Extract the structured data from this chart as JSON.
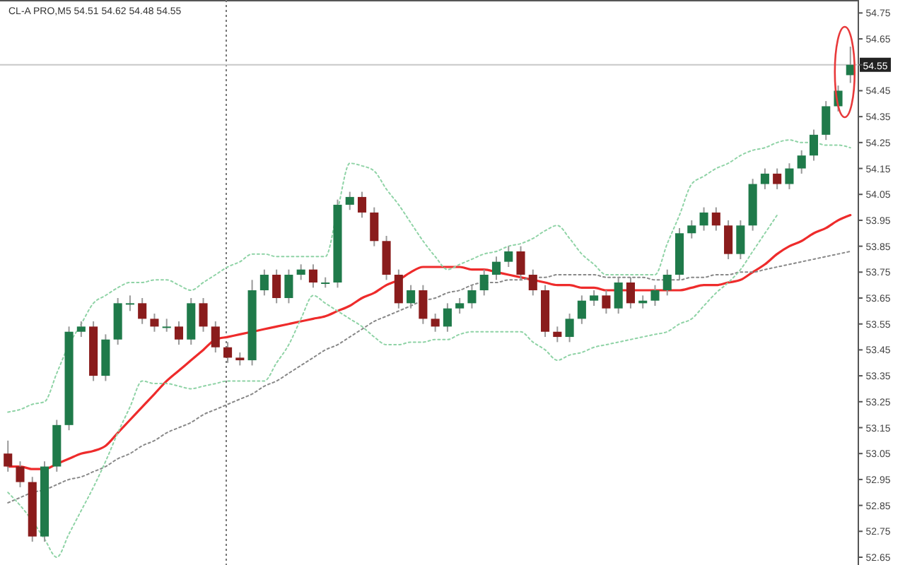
{
  "chart_data": {
    "type": "candlestick",
    "title": "CL-A PRO,M5 54.51 54.62 54.48 54.55",
    "categories": [
      null,
      null,
      null,
      null,
      null,
      null,
      null,
      null,
      null,
      null,
      null,
      null,
      null,
      null,
      null,
      null,
      null,
      null,
      null,
      null,
      null,
      null,
      null,
      null,
      null,
      null,
      null,
      null,
      null,
      null,
      null,
      null,
      null,
      null,
      null,
      null,
      null,
      null,
      null,
      null,
      null,
      null,
      null,
      null,
      null,
      null,
      null,
      null,
      null,
      null,
      null,
      null,
      null,
      null,
      null,
      null,
      null,
      null,
      null,
      null,
      null,
      null,
      null,
      null,
      null,
      null,
      null,
      null,
      null,
      null
    ],
    "ohlc": [
      [
        53.05,
        53.1,
        52.98,
        53.0
      ],
      [
        53.0,
        53.02,
        52.92,
        52.94
      ],
      [
        52.94,
        52.96,
        52.71,
        52.73
      ],
      [
        52.73,
        53.02,
        52.71,
        53.0
      ],
      [
        53.0,
        53.18,
        52.98,
        53.16
      ],
      [
        53.16,
        53.54,
        53.14,
        53.52
      ],
      [
        53.52,
        53.56,
        53.5,
        53.54
      ],
      [
        53.54,
        53.56,
        53.33,
        53.35
      ],
      [
        53.35,
        53.51,
        53.33,
        53.49
      ],
      [
        53.49,
        53.65,
        53.47,
        53.63
      ],
      [
        53.63,
        53.66,
        53.6,
        53.63
      ],
      [
        53.63,
        53.65,
        53.55,
        53.57
      ],
      [
        53.57,
        53.59,
        53.52,
        53.54
      ],
      [
        53.54,
        53.57,
        53.52,
        53.54
      ],
      [
        53.54,
        53.56,
        53.47,
        53.49
      ],
      [
        53.49,
        53.65,
        53.47,
        53.63
      ],
      [
        53.63,
        53.65,
        53.52,
        53.54
      ],
      [
        53.54,
        53.56,
        53.44,
        53.46
      ],
      [
        53.46,
        53.48,
        53.4,
        53.42
      ],
      [
        53.42,
        53.44,
        53.39,
        53.41
      ],
      [
        53.41,
        53.72,
        53.39,
        53.68
      ],
      [
        53.68,
        53.76,
        53.66,
        53.74
      ],
      [
        53.74,
        53.76,
        53.63,
        53.65
      ],
      [
        53.65,
        53.76,
        53.63,
        53.74
      ],
      [
        53.74,
        53.78,
        53.72,
        53.76
      ],
      [
        53.76,
        53.78,
        53.69,
        53.71
      ],
      [
        53.71,
        53.73,
        53.69,
        53.71
      ],
      [
        53.71,
        54.03,
        53.69,
        54.01
      ],
      [
        54.01,
        54.06,
        53.99,
        54.04
      ],
      [
        54.04,
        54.06,
        53.96,
        53.98
      ],
      [
        53.98,
        54.0,
        53.85,
        53.87
      ],
      [
        53.87,
        53.89,
        53.72,
        53.74
      ],
      [
        53.74,
        53.76,
        53.61,
        53.63
      ],
      [
        53.63,
        53.7,
        53.61,
        53.68
      ],
      [
        53.68,
        53.7,
        53.55,
        53.57
      ],
      [
        53.57,
        53.59,
        53.52,
        53.54
      ],
      [
        53.54,
        53.63,
        53.52,
        53.61
      ],
      [
        53.61,
        53.65,
        53.59,
        53.63
      ],
      [
        53.63,
        53.7,
        53.61,
        53.68
      ],
      [
        53.68,
        53.76,
        53.66,
        53.74
      ],
      [
        53.74,
        53.81,
        53.72,
        53.79
      ],
      [
        53.79,
        53.85,
        53.77,
        53.83
      ],
      [
        53.83,
        53.85,
        53.72,
        53.74
      ],
      [
        53.74,
        53.76,
        53.66,
        53.68
      ],
      [
        53.68,
        53.7,
        53.5,
        53.52
      ],
      [
        53.52,
        53.54,
        53.48,
        53.5
      ],
      [
        53.5,
        53.59,
        53.48,
        53.57
      ],
      [
        53.57,
        53.66,
        53.55,
        53.64
      ],
      [
        53.64,
        53.68,
        53.62,
        53.66
      ],
      [
        53.66,
        53.68,
        53.59,
        53.61
      ],
      [
        53.61,
        53.73,
        53.59,
        53.71
      ],
      [
        53.71,
        53.73,
        53.61,
        53.63
      ],
      [
        53.63,
        53.66,
        53.61,
        53.64
      ],
      [
        53.64,
        53.7,
        53.62,
        53.68
      ],
      [
        53.68,
        53.76,
        53.66,
        53.74
      ],
      [
        53.74,
        53.92,
        53.72,
        53.9
      ],
      [
        53.9,
        53.95,
        53.88,
        53.93
      ],
      [
        53.93,
        54.0,
        53.91,
        53.98
      ],
      [
        53.98,
        54.0,
        53.91,
        53.93
      ],
      [
        53.93,
        53.95,
        53.8,
        53.82
      ],
      [
        53.82,
        53.95,
        53.8,
        53.93
      ],
      [
        53.93,
        54.11,
        53.91,
        54.09
      ],
      [
        54.09,
        54.15,
        54.07,
        54.13
      ],
      [
        54.13,
        54.15,
        54.07,
        54.09
      ],
      [
        54.09,
        54.17,
        54.07,
        54.15
      ],
      [
        54.15,
        54.22,
        54.13,
        54.2
      ],
      [
        54.2,
        54.3,
        54.18,
        54.28
      ],
      [
        54.28,
        54.41,
        54.26,
        54.39
      ],
      [
        54.39,
        54.47,
        54.37,
        54.45
      ],
      [
        54.51,
        54.62,
        54.48,
        54.55
      ]
    ],
    "series": [
      {
        "type": "line",
        "color": "#ee2b2b",
        "values": [
          53.0,
          53.0,
          52.99,
          52.99,
          53.01,
          53.03,
          53.05,
          53.06,
          53.08,
          53.13,
          53.18,
          53.23,
          53.28,
          53.33,
          53.37,
          53.41,
          53.45,
          53.49,
          53.5,
          53.51,
          53.52,
          53.53,
          53.54,
          53.55,
          53.56,
          53.57,
          53.58,
          53.6,
          53.62,
          53.65,
          53.67,
          53.7,
          53.72,
          53.75,
          53.77,
          53.77,
          53.77,
          53.77,
          53.76,
          53.76,
          53.75,
          53.74,
          53.73,
          53.72,
          53.71,
          53.7,
          53.7,
          53.69,
          53.69,
          53.68,
          53.68,
          53.68,
          53.68,
          53.68,
          53.68,
          53.68,
          53.69,
          53.7,
          53.7,
          53.71,
          53.72,
          53.75,
          53.78,
          53.82,
          53.85,
          53.87,
          53.9,
          53.92,
          53.95,
          53.97
        ]
      },
      {
        "type": "line",
        "color": "#888888",
        "line_style": "dotted",
        "values": [
          52.86,
          52.88,
          52.9,
          52.91,
          52.93,
          52.95,
          52.96,
          52.98,
          53.0,
          53.03,
          53.05,
          53.08,
          53.1,
          53.13,
          53.15,
          53.17,
          53.2,
          53.22,
          53.24,
          53.26,
          53.28,
          53.31,
          53.33,
          53.36,
          53.39,
          53.42,
          53.45,
          53.47,
          53.5,
          53.53,
          53.56,
          53.58,
          53.6,
          53.62,
          53.64,
          53.65,
          53.67,
          53.68,
          53.7,
          53.71,
          53.71,
          53.72,
          53.72,
          53.73,
          53.73,
          53.74,
          53.74,
          53.74,
          53.74,
          53.73,
          53.73,
          53.73,
          53.73,
          53.72,
          53.72,
          53.72,
          53.73,
          53.73,
          53.74,
          53.74,
          53.75,
          53.75,
          53.76,
          53.77,
          53.78,
          53.79,
          53.8,
          53.81,
          53.82,
          53.83
        ]
      },
      {
        "type": "line",
        "color": "#8fd3a6",
        "line_style": "dotted",
        "values": [
          53.21,
          53.22,
          53.24,
          53.25,
          53.36,
          53.47,
          53.55,
          53.63,
          53.66,
          53.69,
          53.71,
          53.71,
          53.72,
          53.72,
          53.7,
          53.68,
          53.71,
          53.74,
          53.77,
          53.79,
          53.82,
          53.82,
          53.81,
          53.81,
          53.81,
          53.81,
          53.81,
          53.99,
          54.17,
          54.16,
          54.14,
          54.07,
          54.01,
          53.94,
          53.87,
          53.81,
          53.76,
          53.78,
          53.8,
          53.82,
          53.83,
          53.85,
          53.86,
          53.88,
          53.91,
          53.93,
          53.88,
          53.82,
          53.78,
          53.74,
          53.74,
          53.74,
          53.74,
          53.74,
          53.86,
          53.97,
          54.09,
          54.12,
          54.15,
          54.17,
          54.2,
          54.22,
          54.23,
          54.25,
          54.26,
          54.25,
          54.25,
          54.24,
          54.24,
          54.23
        ]
      },
      {
        "type": "line",
        "color": "#8fd3a6",
        "line_style": "dotted",
        "values": [
          52.9,
          52.85,
          52.79,
          52.72,
          52.65,
          52.74,
          52.83,
          52.92,
          53.02,
          53.13,
          53.23,
          53.33,
          53.32,
          53.32,
          53.31,
          53.3,
          53.31,
          53.32,
          53.33,
          53.33,
          53.33,
          53.33,
          53.4,
          53.47,
          53.57,
          53.66,
          53.63,
          53.6,
          53.57,
          53.54,
          53.5,
          53.47,
          53.47,
          53.48,
          53.48,
          53.49,
          53.49,
          53.51,
          53.52,
          53.52,
          53.52,
          53.52,
          53.52,
          53.48,
          53.45,
          53.41,
          53.43,
          53.44,
          53.46,
          53.47,
          53.48,
          53.49,
          53.5,
          53.51,
          53.52,
          53.55,
          53.57,
          53.62,
          53.67,
          53.71,
          53.76,
          53.83,
          53.9,
          53.97,
          null,
          null,
          null,
          null,
          null,
          null
        ]
      }
    ],
    "ylim": [
      52.62,
      54.8
    ],
    "yticks": [
      52.65,
      52.75,
      52.85,
      52.95,
      53.05,
      53.15,
      53.25,
      53.35,
      53.45,
      53.55,
      53.65,
      53.75,
      53.85,
      53.95,
      54.05,
      54.15,
      54.25,
      54.35,
      54.45,
      54.55,
      54.65,
      54.75
    ],
    "ref_lines": [
      {
        "axis": "y",
        "value": 54.55,
        "label": "54.55",
        "color": "#c8c8c8"
      }
    ],
    "tick_labels": "y"
  }
}
